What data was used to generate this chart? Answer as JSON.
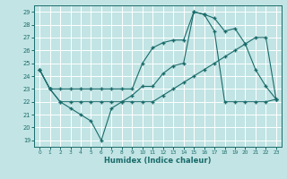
{
  "xlabel": "Humidex (Indice chaleur)",
  "xlim": [
    -0.5,
    23.5
  ],
  "ylim": [
    18.5,
    29.5
  ],
  "yticks": [
    19,
    20,
    21,
    22,
    23,
    24,
    25,
    26,
    27,
    28,
    29
  ],
  "xticks": [
    0,
    1,
    2,
    3,
    4,
    5,
    6,
    7,
    8,
    9,
    10,
    11,
    12,
    13,
    14,
    15,
    16,
    17,
    18,
    19,
    20,
    21,
    22,
    23
  ],
  "bg_color": "#c2e4e4",
  "grid_color": "#ffffff",
  "line_color": "#1a6b6b",
  "line1_x": [
    0,
    1,
    2,
    3,
    4,
    5,
    6,
    7,
    8,
    9,
    10,
    11,
    12,
    13,
    14,
    15,
    16,
    17,
    18,
    19,
    20,
    21,
    22,
    23
  ],
  "line1_y": [
    24.5,
    23.0,
    23.0,
    23.0,
    23.0,
    23.0,
    23.0,
    23.0,
    23.0,
    23.0,
    25.0,
    26.2,
    26.6,
    26.8,
    26.8,
    29.0,
    28.8,
    28.5,
    27.5,
    27.7,
    26.5,
    24.5,
    23.2,
    22.2
  ],
  "line2_x": [
    0,
    1,
    2,
    3,
    4,
    5,
    6,
    7,
    8,
    9,
    10,
    11,
    12,
    13,
    14,
    15,
    16,
    17,
    18,
    19,
    20,
    21,
    22,
    23
  ],
  "line2_y": [
    24.5,
    23.0,
    22.0,
    22.0,
    22.0,
    22.0,
    22.0,
    22.0,
    22.0,
    22.0,
    22.0,
    22.0,
    22.5,
    23.0,
    23.5,
    24.0,
    24.5,
    25.0,
    25.5,
    26.0,
    26.5,
    27.0,
    27.0,
    22.2
  ],
  "line3_x": [
    0,
    1,
    2,
    3,
    4,
    5,
    6,
    7,
    8,
    9,
    10,
    11,
    12,
    13,
    14,
    15,
    16,
    17,
    18,
    19,
    20,
    21,
    22,
    23
  ],
  "line3_y": [
    24.5,
    23.0,
    22.0,
    21.5,
    21.0,
    20.5,
    19.0,
    21.5,
    22.0,
    22.5,
    23.2,
    23.2,
    24.2,
    24.8,
    25.0,
    29.0,
    28.8,
    27.5,
    22.0,
    22.0,
    22.0,
    22.0,
    22.0,
    22.2
  ]
}
